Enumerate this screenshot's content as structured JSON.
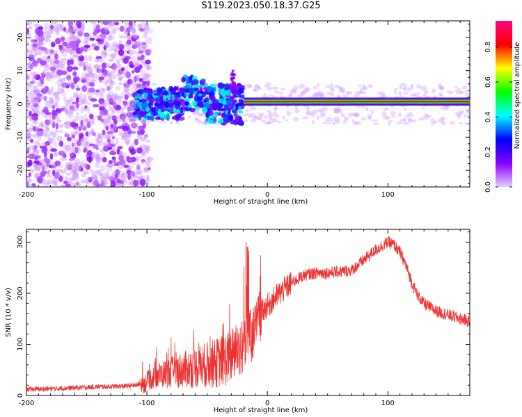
{
  "title": "S119.2023.050.18.37.G25",
  "chart_data": [
    {
      "type": "heatmap",
      "xlabel": "Height of straight line (km)",
      "ylabel": "Frequency (Hz)",
      "xlim": [
        -200,
        168
      ],
      "ylim": [
        -25,
        25
      ],
      "x_ticks": [
        -200,
        -100,
        0,
        100
      ],
      "y_ticks": [
        -20,
        -10,
        0,
        10,
        20
      ],
      "colorbar": {
        "label": "Normalized spectral amplitude",
        "range": [
          0,
          0.95
        ],
        "ticks": [
          0.0,
          0.2,
          0.4,
          0.6,
          0.8
        ],
        "colors": [
          "#e6ccff",
          "#8800ff",
          "#0000ff",
          "#00ffff",
          "#00ff00",
          "#ffff00",
          "#ff0000",
          "#ff0088"
        ]
      },
      "features": {
        "noise_region_km": [
          -200,
          -105
        ],
        "noise_spread_hz": [
          -25,
          25
        ],
        "transition_region_km": [
          -110,
          -20
        ],
        "steady_line_km": [
          -20,
          168
        ],
        "steady_line_hz": 0.7
      }
    },
    {
      "type": "line",
      "xlabel": "Height of straight line (km)",
      "ylabel": "SNR (10 * v/v)",
      "xlim": [
        -200,
        168
      ],
      "ylim": [
        0,
        325
      ],
      "x_ticks": [
        -200,
        -100,
        0,
        100
      ],
      "y_ticks": [
        0,
        100,
        200,
        300
      ],
      "line_color": "#ee3333",
      "series": [
        {
          "x": [
            -200,
            -180,
            -160,
            -140,
            -120,
            -110,
            -100,
            -95,
            -90,
            -80,
            -70,
            -60,
            -50,
            -40,
            -30,
            -25,
            -20,
            -15,
            -10,
            -5,
            0,
            10,
            20,
            30,
            40,
            50,
            60,
            70,
            80,
            90,
            100,
            105,
            110,
            115,
            120,
            125,
            130,
            140,
            150,
            160,
            168
          ],
          "y": [
            12,
            13,
            15,
            17,
            18,
            20,
            25,
            35,
            40,
            45,
            50,
            55,
            60,
            65,
            75,
            95,
            90,
            110,
            130,
            165,
            175,
            200,
            220,
            235,
            240,
            240,
            242,
            245,
            265,
            285,
            300,
            295,
            280,
            255,
            220,
            195,
            180,
            165,
            158,
            150,
            145
          ]
        }
      ]
    }
  ]
}
